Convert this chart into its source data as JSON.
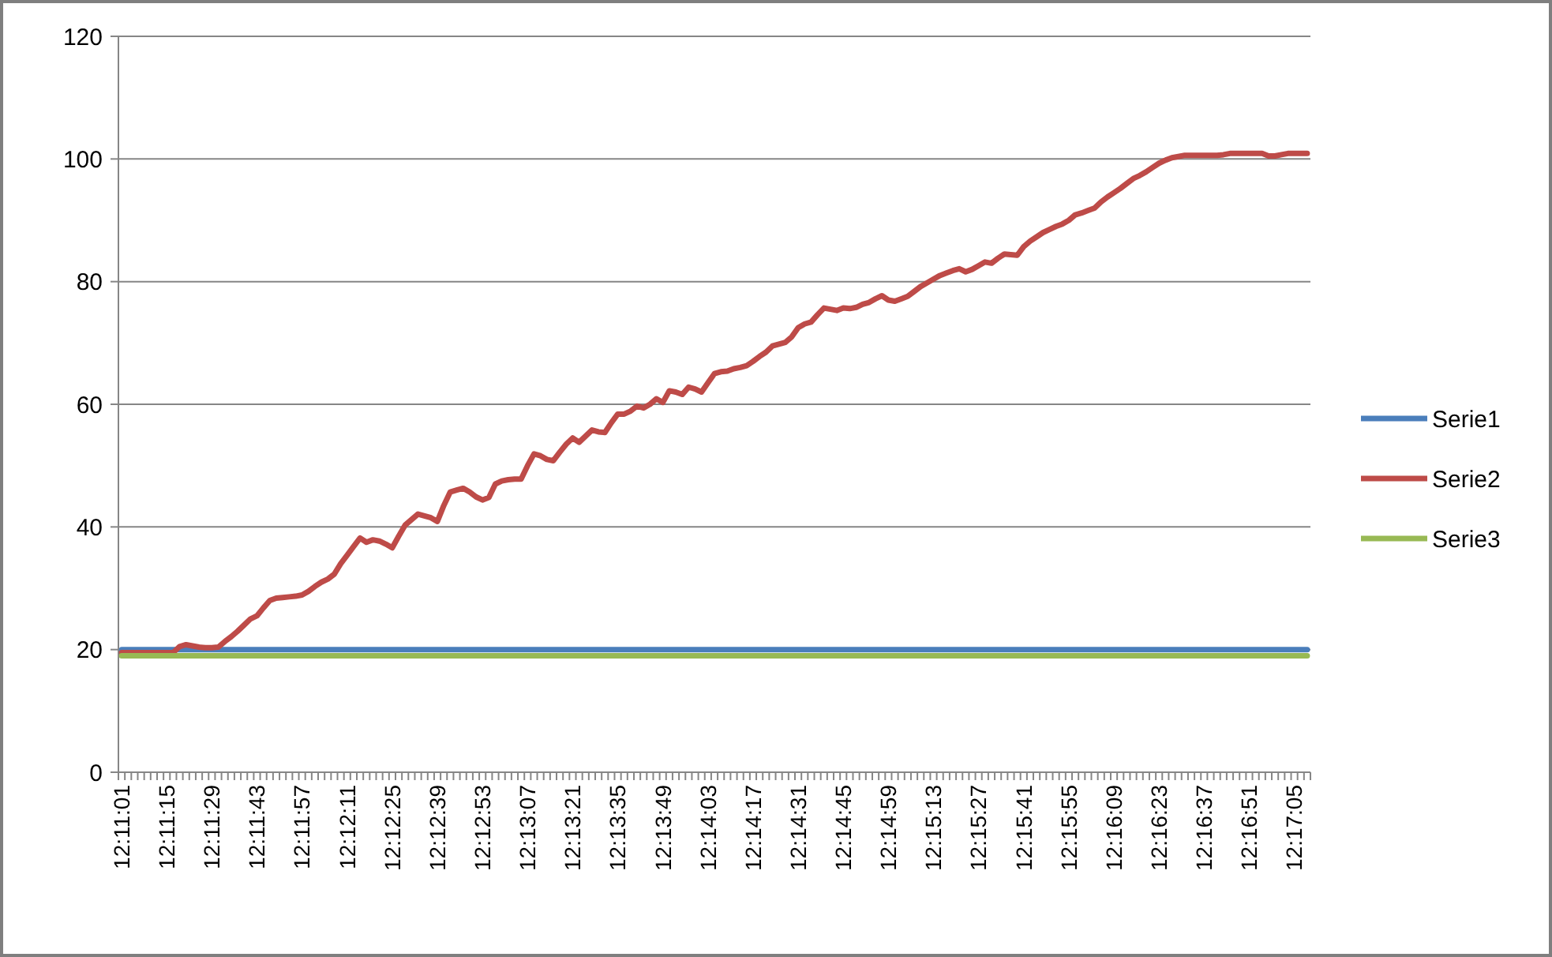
{
  "chart_data": {
    "type": "line",
    "categories": [
      "12:11:01",
      null,
      null,
      null,
      null,
      null,
      null,
      "12:11:15",
      null,
      null,
      null,
      null,
      null,
      null,
      "12:11:29",
      null,
      null,
      null,
      null,
      null,
      null,
      "12:11:43",
      null,
      null,
      null,
      null,
      null,
      null,
      "12:11:57",
      null,
      null,
      null,
      null,
      null,
      null,
      "12:12:11",
      null,
      null,
      null,
      null,
      null,
      null,
      "12:12:25",
      null,
      null,
      null,
      null,
      null,
      null,
      "12:12:39",
      null,
      null,
      null,
      null,
      null,
      null,
      "12:12:53",
      null,
      null,
      null,
      null,
      null,
      null,
      "12:13:07",
      null,
      null,
      null,
      null,
      null,
      null,
      "12:13:21",
      null,
      null,
      null,
      null,
      null,
      null,
      "12:13:35",
      null,
      null,
      null,
      null,
      null,
      null,
      "12:13:49",
      null,
      null,
      null,
      null,
      null,
      null,
      "12:14:03",
      null,
      null,
      null,
      null,
      null,
      null,
      "12:14:17",
      null,
      null,
      null,
      null,
      null,
      null,
      "12:14:31",
      null,
      null,
      null,
      null,
      null,
      null,
      "12:14:45",
      null,
      null,
      null,
      null,
      null,
      null,
      "12:14:59",
      null,
      null,
      null,
      null,
      null,
      null,
      "12:15:13",
      null,
      null,
      null,
      null,
      null,
      null,
      "12:15:27",
      null,
      null,
      null,
      null,
      null,
      null,
      "12:15:41",
      null,
      null,
      null,
      null,
      null,
      null,
      "12:15:55",
      null,
      null,
      null,
      null,
      null,
      null,
      "12:16:09",
      null,
      null,
      null,
      null,
      null,
      null,
      "12:16:23",
      null,
      null,
      null,
      null,
      null,
      null,
      "12:16:37",
      null,
      null,
      null,
      null,
      null,
      null,
      "12:16:51",
      null,
      null,
      null,
      null,
      null,
      null,
      "12:17:05",
      null,
      null
    ],
    "series": [
      {
        "name": "Serie1",
        "color": "#4a7ebb",
        "values": [
          20,
          20,
          20,
          20,
          20,
          20,
          20,
          20,
          20,
          20,
          20,
          20,
          20,
          20,
          20,
          20,
          20,
          20,
          20,
          20,
          20,
          20,
          20,
          20,
          20,
          20,
          20,
          20,
          20,
          20,
          20,
          20,
          20,
          20,
          20,
          20,
          20,
          20,
          20,
          20,
          20,
          20,
          20,
          20,
          20,
          20,
          20,
          20,
          20,
          20,
          20,
          20,
          20,
          20,
          20,
          20,
          20,
          20,
          20,
          20,
          20,
          20,
          20,
          20,
          20,
          20,
          20,
          20,
          20,
          20,
          20,
          20,
          20,
          20,
          20,
          20,
          20,
          20,
          20,
          20,
          20,
          20,
          20,
          20,
          20,
          20,
          20,
          20,
          20,
          20,
          20,
          20,
          20,
          20,
          20,
          20,
          20,
          20,
          20,
          20,
          20,
          20,
          20,
          20,
          20,
          20,
          20,
          20,
          20,
          20,
          20,
          20,
          20,
          20,
          20,
          20,
          20,
          20,
          20,
          20,
          20,
          20,
          20,
          20,
          20,
          20,
          20,
          20,
          20,
          20,
          20,
          20,
          20,
          20,
          20,
          20,
          20,
          20,
          20,
          20,
          20,
          20,
          20,
          20,
          20,
          20,
          20,
          20,
          20,
          20,
          20,
          20,
          20,
          20,
          20,
          20,
          20,
          20,
          20,
          20,
          20,
          20,
          20,
          20,
          20,
          20,
          20,
          20,
          20,
          20,
          20,
          20,
          20,
          20,
          20,
          20,
          20,
          20,
          20,
          20,
          20,
          20,
          20,
          20,
          20
        ]
      },
      {
        "name": "Serie2",
        "color": "#be4b48",
        "values": [
          19.5,
          19.5,
          19.5,
          19.5,
          19.5,
          19.5,
          19.5,
          19.5,
          19.5,
          20.5,
          20.8,
          20.6,
          20.4,
          20.3,
          20.3,
          20.4,
          21.3,
          22.1,
          23,
          24,
          25,
          25.5,
          26.8,
          28,
          28.4,
          28.5,
          28.6,
          28.7,
          28.9,
          29.5,
          30.3,
          31,
          31.5,
          32.3,
          34,
          35.4,
          36.8,
          38.2,
          37.5,
          37.9,
          37.7,
          37.2,
          36.6,
          38.5,
          40.3,
          41.2,
          42.1,
          41.8,
          41.5,
          40.9,
          43.5,
          45.7,
          46,
          46.3,
          45.7,
          44.9,
          44.4,
          44.8,
          47,
          47.5,
          47.7,
          47.8,
          47.8,
          50,
          51.9,
          51.6,
          51,
          50.8,
          52.2,
          53.5,
          54.5,
          53.8,
          54.8,
          55.8,
          55.5,
          55.4,
          57,
          58.4,
          58.4,
          58.9,
          59.7,
          59.4,
          60,
          60.9,
          60.3,
          62.2,
          62,
          61.6,
          62.8,
          62.5,
          62,
          63.5,
          65,
          65.3,
          65.4,
          65.8,
          66,
          66.3,
          67,
          67.8,
          68.5,
          69.5,
          69.8,
          70.1,
          71,
          72.5,
          73.1,
          73.4,
          74.6,
          75.7,
          75.5,
          75.3,
          75.7,
          75.6,
          75.8,
          76.3,
          76.6,
          77.2,
          77.7,
          77,
          76.8,
          77.2,
          77.6,
          78.4,
          79.2,
          79.8,
          80.4,
          81,
          81.4,
          81.8,
          82.1,
          81.6,
          82,
          82.6,
          83.2,
          83,
          83.8,
          84.5,
          84.4,
          84.3,
          85.7,
          86.6,
          87.3,
          88,
          88.5,
          89,
          89.4,
          90,
          90.9,
          91.2,
          91.6,
          92,
          93,
          93.8,
          94.5,
          95.2,
          96,
          96.8,
          97.3,
          97.9,
          98.6,
          99.3,
          99.8,
          100.2,
          100.4,
          100.6,
          100.6,
          100.6,
          100.6,
          100.6,
          100.6,
          100.7,
          100.9,
          100.9,
          100.9,
          100.9,
          100.9,
          100.9,
          100.5,
          100.5,
          100.7,
          100.9,
          100.9,
          100.9,
          100.9
        ]
      },
      {
        "name": "Serie3",
        "color": "#98b954",
        "values": [
          19,
          19,
          19,
          19,
          19,
          19,
          19,
          19,
          19,
          19,
          19,
          19,
          19,
          19,
          19,
          19,
          19,
          19,
          19,
          19,
          19,
          19,
          19,
          19,
          19,
          19,
          19,
          19,
          19,
          19,
          19,
          19,
          19,
          19,
          19,
          19,
          19,
          19,
          19,
          19,
          19,
          19,
          19,
          19,
          19,
          19,
          19,
          19,
          19,
          19,
          19,
          19,
          19,
          19,
          19,
          19,
          19,
          19,
          19,
          19,
          19,
          19,
          19,
          19,
          19,
          19,
          19,
          19,
          19,
          19,
          19,
          19,
          19,
          19,
          19,
          19,
          19,
          19,
          19,
          19,
          19,
          19,
          19,
          19,
          19,
          19,
          19,
          19,
          19,
          19,
          19,
          19,
          19,
          19,
          19,
          19,
          19,
          19,
          19,
          19,
          19,
          19,
          19,
          19,
          19,
          19,
          19,
          19,
          19,
          19,
          19,
          19,
          19,
          19,
          19,
          19,
          19,
          19,
          19,
          19,
          19,
          19,
          19,
          19,
          19,
          19,
          19,
          19,
          19,
          19,
          19,
          19,
          19,
          19,
          19,
          19,
          19,
          19,
          19,
          19,
          19,
          19,
          19,
          19,
          19,
          19,
          19,
          19,
          19,
          19,
          19,
          19,
          19,
          19,
          19,
          19,
          19,
          19,
          19,
          19,
          19,
          19,
          19,
          19,
          19,
          19,
          19,
          19,
          19,
          19,
          19,
          19,
          19,
          19,
          19,
          19,
          19,
          19,
          19,
          19,
          19,
          19,
          19,
          19,
          19
        ]
      }
    ],
    "ylim": [
      0,
      120
    ],
    "yticks": [
      0,
      20,
      40,
      60,
      80,
      100,
      120
    ],
    "grid": "y",
    "legend": "right"
  }
}
